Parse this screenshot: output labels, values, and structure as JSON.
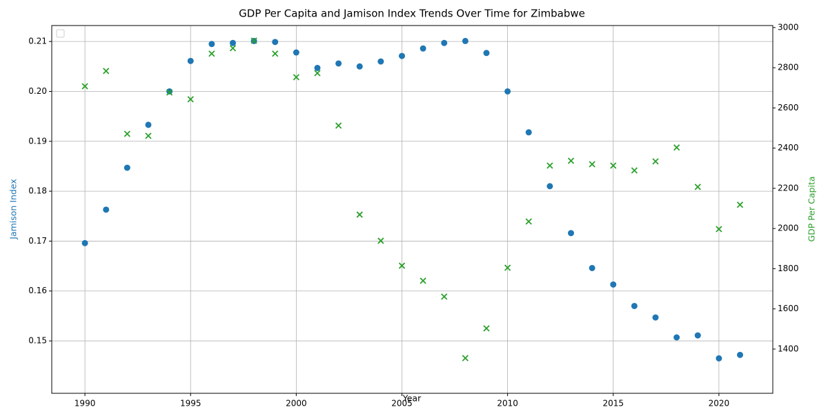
{
  "chart_data": {
    "type": "scatter",
    "title": "GDP Per Capita and Jamison Index Trends Over Time for Zimbabwe",
    "x_label": "Year",
    "y_label": "Jamison Index",
    "y2_label": "GDP Per Capita",
    "x": [
      1990,
      1991,
      1992,
      1993,
      1994,
      1995,
      1996,
      1997,
      1998,
      1999,
      2000,
      2001,
      2002,
      2003,
      2004,
      2005,
      2006,
      2007,
      2008,
      2009,
      2010,
      2011,
      2012,
      2013,
      2014,
      2015,
      2016,
      2017,
      2018,
      2019,
      2020,
      2021
    ],
    "series": [
      {
        "color": "#1f77b4",
        "marker": "circle",
        "axis": "y",
        "values": [
          0.1696,
          0.1763,
          0.1847,
          0.1933,
          0.2,
          0.2061,
          0.2095,
          0.2097,
          0.2101,
          0.2099,
          0.2078,
          0.2047,
          0.2056,
          0.205,
          0.206,
          0.2071,
          0.2086,
          0.2097,
          0.2101,
          0.2077,
          0.2,
          0.1918,
          0.181,
          0.1716,
          0.1646,
          0.1613,
          0.157,
          0.1547,
          0.1507,
          0.1511,
          0.1465,
          0.1472
        ]
      },
      {
        "color": "#2ca02c",
        "marker": "x",
        "axis": "y2",
        "values": [
          2708,
          2784,
          2471,
          2461,
          2677,
          2643,
          2870,
          2897,
          2935,
          2870,
          2753,
          2773,
          2512,
          2069,
          1939,
          1815,
          1740,
          1661,
          1355,
          1503,
          1805,
          2035,
          2313,
          2337,
          2320,
          2313,
          2289,
          2334,
          2403,
          2207,
          1997,
          2118
        ]
      }
    ],
    "xlim": [
      1988.43,
      2022.55
    ],
    "xticks": [
      1990,
      1995,
      2000,
      2005,
      2010,
      2015,
      2020
    ],
    "ylim": [
      0.1395,
      0.2132
    ],
    "yticks": [
      0.15,
      0.16,
      0.17,
      0.18,
      0.19,
      {
        "value": 0.2,
        "label": "0.20"
      },
      0.21
    ],
    "y2lim": [
      1180,
      3010
    ],
    "y2ticks": [
      1400,
      1600,
      1800,
      2000,
      2200,
      2400,
      2600,
      2800,
      3000
    ],
    "grid": true,
    "y_label_color": "#1f77b4",
    "y2_label_color": "#2ca02c"
  }
}
